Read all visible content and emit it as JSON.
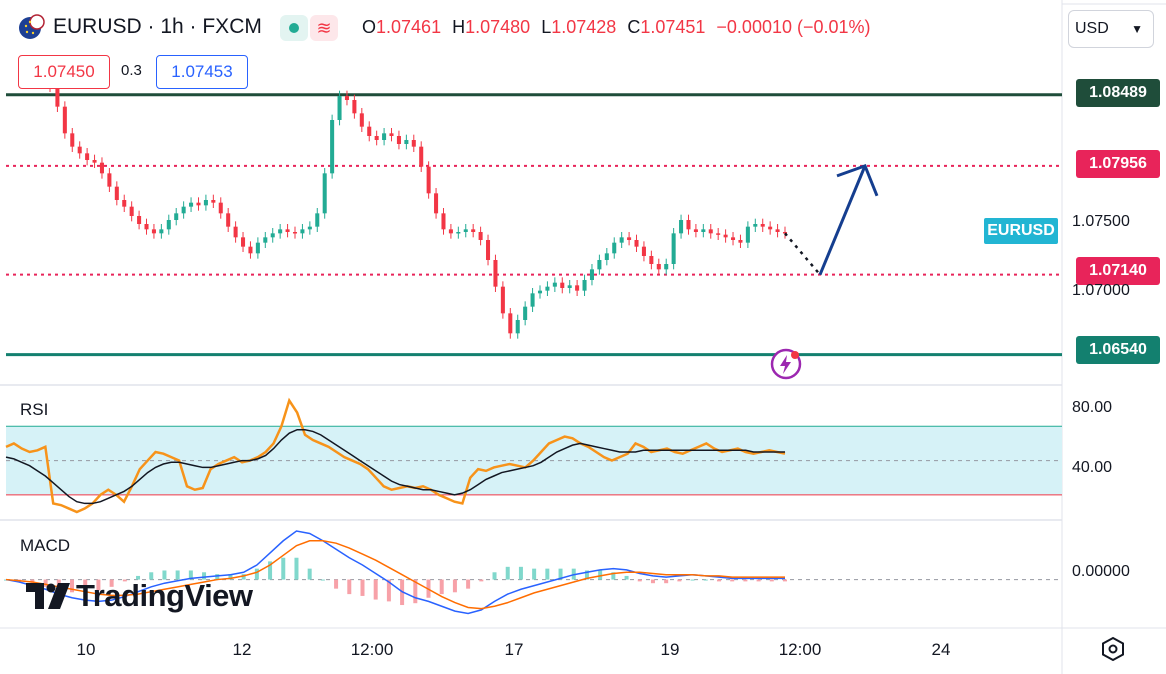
{
  "header": {
    "symbol_title": "EURUSD · 1h · FXCM",
    "ohlc": {
      "o_label": "O",
      "o_value": "1.07461",
      "h_label": "H",
      "h_value": "1.07480",
      "l_label": "L",
      "l_value": "1.07428",
      "c_label": "C",
      "c_value": "1.07451",
      "change": "−0.00010 (−0.01%)"
    },
    "sell_price": "1.07450",
    "spread": "0.3",
    "buy_price": "1.07453"
  },
  "currency_select": {
    "value": "USD"
  },
  "price_axis": {
    "levels": [
      {
        "label": "1.08489",
        "color": "#1f4d3a"
      },
      {
        "label": "1.07956",
        "color": "#e8245a"
      },
      {
        "label": "1.07140",
        "color": "#e8245a"
      },
      {
        "label": "1.06540",
        "color": "#13806f"
      }
    ],
    "plain_ticks": [
      "1.07500",
      "1.07000"
    ],
    "symbol_tag": "EURUSD"
  },
  "rsi_pane": {
    "title": "RSI",
    "ticks": [
      "80.00",
      "40.00"
    ]
  },
  "macd_pane": {
    "title": "MACD",
    "ticks": [
      "0.00000"
    ]
  },
  "time_axis": {
    "labels": [
      "10",
      "12",
      "12:00",
      "17",
      "19",
      "12:00",
      "24"
    ]
  },
  "branding": {
    "logo_text": "TradingView"
  },
  "colors": {
    "up": "#22ab94",
    "down": "#f23645",
    "rsi_line": "#f7931a",
    "rsi_ma": "#131722",
    "macd_line": "#2962ff",
    "signal_line": "#ff6d00",
    "forecast_arrow": "#153e8f"
  },
  "chart_data": {
    "type": "candlestick",
    "price_range": [
      1.0635,
      1.0875
    ],
    "candles_note": "",
    "close_path": [
      1.0855,
      1.084,
      1.082,
      1.081,
      1.0805,
      1.08,
      1.0798,
      1.079,
      1.078,
      1.077,
      1.0765,
      1.0758,
      1.0752,
      1.0748,
      1.0745,
      1.0748,
      1.0755,
      1.076,
      1.0765,
      1.0768,
      1.0766,
      1.077,
      1.0768,
      1.076,
      1.075,
      1.0742,
      1.0735,
      1.073,
      1.0738,
      1.0742,
      1.0745,
      1.0748,
      1.0746,
      1.0745,
      1.0748,
      1.075,
      1.076,
      1.079,
      1.083,
      1.0848,
      1.0845,
      1.0835,
      1.0825,
      1.0818,
      1.0815,
      1.082,
      1.0818,
      1.0812,
      1.0815,
      1.081,
      1.0795,
      1.0775,
      1.076,
      1.0748,
      1.0745,
      1.0746,
      1.0748,
      1.0746,
      1.074,
      1.0725,
      1.0705,
      1.0685,
      1.067,
      1.068,
      1.069,
      1.07,
      1.0702,
      1.0705,
      1.0708,
      1.0704,
      1.0706,
      1.0702,
      1.071,
      1.0718,
      1.0725,
      1.073,
      1.0738,
      1.0742,
      1.074,
      1.0735,
      1.0728,
      1.0722,
      1.0718,
      1.0722,
      1.0745,
      1.0755,
      1.0748,
      1.0746,
      1.0748,
      1.0745,
      1.0744,
      1.0742,
      1.074,
      1.0738,
      1.075,
      1.0752,
      1.075,
      1.0748,
      1.0746,
      1.0745
    ],
    "levels": [
      1.08489,
      1.07956,
      1.0714,
      1.0654
    ],
    "rsi_range": [
      20,
      90
    ],
    "rsi_values": [
      58,
      60,
      57,
      55,
      56,
      58,
      25,
      24,
      22,
      20,
      22,
      25,
      30,
      33,
      30,
      26,
      35,
      45,
      50,
      55,
      54,
      52,
      50,
      35,
      33,
      34,
      45,
      48,
      50,
      52,
      49,
      50,
      52,
      55,
      60,
      70,
      85,
      78,
      65,
      62,
      60,
      58,
      55,
      52,
      50,
      48,
      45,
      40,
      35,
      33,
      34,
      35,
      34,
      35,
      33,
      30,
      28,
      26,
      25,
      40,
      45,
      44,
      46,
      47,
      48,
      47,
      46,
      50,
      55,
      60,
      62,
      64,
      63,
      60,
      58,
      55,
      52,
      50,
      52,
      54,
      60,
      58,
      55,
      56,
      57,
      55,
      54,
      56,
      58,
      60,
      57,
      55,
      56,
      57,
      55,
      54,
      55,
      56,
      55,
      54
    ],
    "rsi_ma_values": [
      52,
      51,
      49,
      47,
      44,
      41,
      37,
      33,
      29,
      26,
      25,
      25,
      26,
      28,
      30,
      32,
      35,
      39,
      43,
      46,
      48,
      49,
      49,
      48,
      47,
      46,
      46,
      47,
      48,
      49,
      50,
      50,
      51,
      53,
      57,
      62,
      66,
      68,
      68,
      67,
      65,
      62,
      59,
      56,
      53,
      50,
      47,
      44,
      41,
      38,
      36,
      35,
      34,
      33,
      33,
      32,
      31,
      30,
      31,
      33,
      36,
      39,
      41,
      43,
      44,
      45,
      46,
      47,
      49,
      52,
      55,
      57,
      59,
      60,
      59,
      58,
      57,
      56,
      55,
      55,
      55,
      56,
      56,
      56,
      56,
      56,
      56,
      56,
      56,
      56,
      56,
      56,
      56,
      56,
      56,
      55,
      55,
      55,
      55,
      55
    ],
    "macd_values": [
      0,
      -0.0002,
      -0.0005,
      -0.0008,
      -0.0012,
      -0.0015,
      -0.0017,
      -0.0018,
      -0.0017,
      -0.0014,
      -0.001,
      -0.0006,
      -0.0003,
      -0.0001,
      0.0001,
      0.0002,
      0.0003,
      0.0004,
      0.0006,
      0.0012,
      0.0022,
      0.0032,
      0.004,
      0.0038,
      0.0032,
      0.0025,
      0.0018,
      0.0012,
      0.0005,
      -0.0002,
      -0.001,
      -0.0015,
      -0.0018,
      -0.0022,
      -0.0026,
      -0.0028,
      -0.0025,
      -0.0018,
      -0.0012,
      -0.0008,
      -0.0005,
      -0.0002,
      0.0001,
      0.0004,
      0.0006,
      0.0008,
      0.0009,
      0.0008,
      0.0005,
      0.0003,
      0.0002,
      0.0003,
      0.0004,
      0.0003,
      0.0002,
      0.0001,
      0.0001,
      0.0001,
      0.0001,
      0.0001
    ],
    "signal_values": [
      0,
      -0.0001,
      -0.0002,
      -0.0004,
      -0.0006,
      -0.0008,
      -0.001,
      -0.0012,
      -0.0013,
      -0.0013,
      -0.0012,
      -0.001,
      -0.0008,
      -0.0006,
      -0.0004,
      -0.0002,
      0,
      0.0001,
      0.0003,
      0.0006,
      0.0012,
      0.002,
      0.0028,
      0.0032,
      0.0032,
      0.003,
      0.0026,
      0.0021,
      0.0016,
      0.001,
      0.0004,
      -0.0002,
      -0.0008,
      -0.0014,
      -0.0019,
      -0.0023,
      -0.0024,
      -0.0022,
      -0.0019,
      -0.0015,
      -0.0011,
      -0.0008,
      -0.0005,
      -0.0002,
      0.0001,
      0.0003,
      0.0005,
      0.0006,
      0.0006,
      0.0005,
      0.0004,
      0.0004,
      0.0004,
      0.0003,
      0.0003,
      0.0002,
      0.0002,
      0.0002,
      0.0002,
      0.0002
    ],
    "macd_range": [
      -0.0035,
      0.0045
    ]
  }
}
